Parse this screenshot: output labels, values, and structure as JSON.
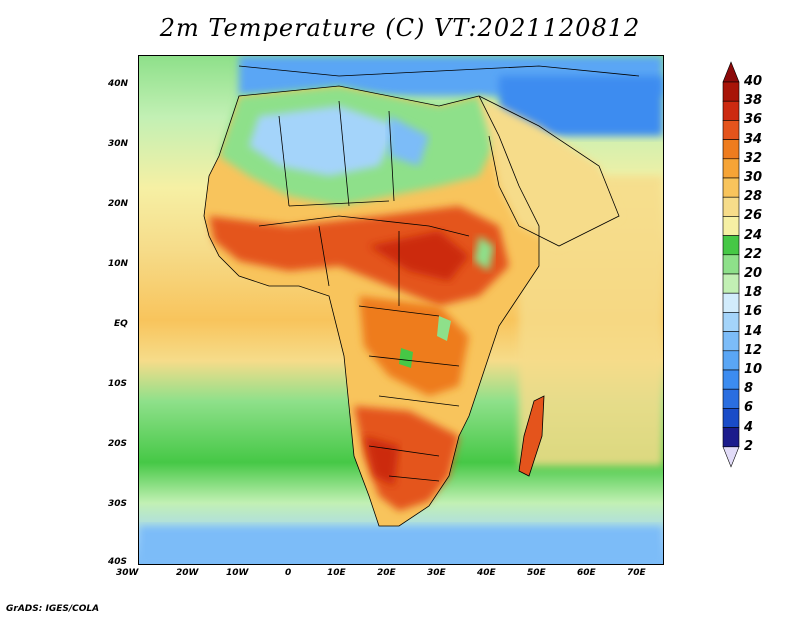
{
  "title": "2m Temperature (C) VT:2021120812",
  "footer": "GrADS: IGES/COLA",
  "map": {
    "projection": "lat-lon",
    "lon_range": [
      -30,
      75
    ],
    "lat_range": [
      -40,
      45
    ],
    "lon_ticks": [
      {
        "value": -30,
        "label": "30W"
      },
      {
        "value": -20,
        "label": "20W"
      },
      {
        "value": -10,
        "label": "10W"
      },
      {
        "value": 0,
        "label": "0"
      },
      {
        "value": 10,
        "label": "10E"
      },
      {
        "value": 20,
        "label": "20E"
      },
      {
        "value": 30,
        "label": "30E"
      },
      {
        "value": 40,
        "label": "40E"
      },
      {
        "value": 50,
        "label": "50E"
      },
      {
        "value": 60,
        "label": "60E"
      },
      {
        "value": 70,
        "label": "70E"
      }
    ],
    "lat_ticks": [
      {
        "value": 40,
        "label": "40N"
      },
      {
        "value": 30,
        "label": "30N"
      },
      {
        "value": 20,
        "label": "20N"
      },
      {
        "value": 10,
        "label": "10N"
      },
      {
        "value": 0,
        "label": "EQ"
      },
      {
        "value": -10,
        "label": "10S"
      },
      {
        "value": -20,
        "label": "20S"
      },
      {
        "value": -30,
        "label": "30S"
      },
      {
        "value": -40,
        "label": "40S"
      }
    ]
  },
  "colorbar": {
    "levels": [
      "2",
      "4",
      "6",
      "8",
      "10",
      "12",
      "14",
      "16",
      "18",
      "20",
      "22",
      "24",
      "26",
      "28",
      "30",
      "32",
      "34",
      "36",
      "38",
      "40"
    ],
    "colors": [
      "#1c1c8c",
      "#1a4cc8",
      "#2a6ee0",
      "#3c8cf0",
      "#5aa6f5",
      "#7cbcf8",
      "#a4d4fa",
      "#d2ecfc",
      "#c2f0b4",
      "#8ee08a",
      "#46c846",
      "#f6f0a4",
      "#f6dc8a",
      "#f8c45c",
      "#f6a436",
      "#ee7c1e",
      "#e4541c",
      "#cc2a10",
      "#a81408"
    ],
    "under_color": "#e2dcf8",
    "over_color": "#8c0a0a"
  }
}
